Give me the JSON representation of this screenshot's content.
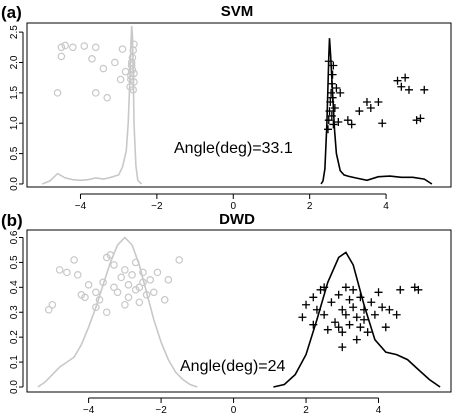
{
  "chart_data": [
    {
      "panel_label": "(a)",
      "type": "scatter",
      "title": "SVM",
      "xlabel": "",
      "ylabel": "",
      "xlim": [
        -5.4,
        5.7
      ],
      "ylim": [
        -0.05,
        2.65
      ],
      "xticks": [
        -4,
        -2,
        0,
        2,
        4
      ],
      "xtick_labels": [
        "−4",
        "−2",
        "0",
        "2",
        "4"
      ],
      "yticks": [
        0.0,
        0.5,
        1.0,
        1.5,
        2.0,
        2.5
      ],
      "ytick_labels": [
        "0.0",
        "0.5",
        "1.0",
        "1.5",
        "2.0",
        "2.5"
      ],
      "grid": false,
      "annotation": "Angle(deg)=33.1",
      "colors": {
        "class_circle": "#c8c8c8",
        "class_plus": "#000000"
      },
      "series": [
        {
          "marker": "circle",
          "points": [
            [
              -4.6,
              1.5
            ],
            [
              -4.5,
              2.1
            ],
            [
              -4.5,
              2.25
            ],
            [
              -4.4,
              2.28
            ],
            [
              -4.2,
              2.25
            ],
            [
              -3.9,
              2.27
            ],
            [
              -3.7,
              2.06
            ],
            [
              -3.6,
              2.25
            ],
            [
              -3.6,
              1.5
            ],
            [
              -3.4,
              1.9
            ],
            [
              -3.3,
              1.42
            ],
            [
              -3.1,
              2.0
            ],
            [
              -2.95,
              1.72
            ],
            [
              -2.9,
              2.22
            ],
            [
              -2.82,
              1.85
            ],
            [
              -2.7,
              1.6
            ],
            [
              -2.68,
              1.78
            ],
            [
              -2.66,
              1.95
            ],
            [
              -2.64,
              2.08
            ],
            [
              -2.62,
              2.2
            ],
            [
              -2.6,
              2.3
            ],
            [
              -2.6,
              1.68
            ],
            [
              -2.62,
              1.55
            ],
            [
              -2.64,
              1.88
            ],
            [
              -2.66,
              2.0
            ],
            [
              -2.68,
              1.72
            ],
            [
              -2.6,
              1.82
            ]
          ]
        },
        {
          "marker": "plus",
          "points": [
            [
              2.48,
              0.9
            ],
            [
              2.5,
              1.05
            ],
            [
              2.52,
              1.2
            ],
            [
              2.54,
              1.35
            ],
            [
              2.56,
              1.5
            ],
            [
              2.58,
              1.65
            ],
            [
              2.6,
              1.8
            ],
            [
              2.62,
              1.95
            ],
            [
              2.5,
              2.02
            ],
            [
              2.58,
              1.12
            ],
            [
              2.6,
              1.42
            ],
            [
              2.62,
              0.98
            ],
            [
              2.66,
              1.25
            ],
            [
              2.7,
              1.58
            ],
            [
              2.75,
              1.02
            ],
            [
              2.8,
              1.5
            ],
            [
              3.0,
              1.05
            ],
            [
              3.1,
              0.98
            ],
            [
              3.3,
              1.2
            ],
            [
              3.5,
              1.35
            ],
            [
              3.6,
              1.25
            ],
            [
              3.8,
              1.35
            ],
            [
              3.9,
              1.0
            ],
            [
              4.3,
              1.7
            ],
            [
              4.4,
              1.6
            ],
            [
              4.5,
              1.75
            ],
            [
              4.6,
              1.55
            ],
            [
              4.8,
              1.05
            ],
            [
              4.9,
              1.08
            ],
            [
              5.0,
              1.55
            ]
          ]
        }
      ],
      "density_curves": [
        {
          "color": "#c8c8c8",
          "x": [
            -5.0,
            -4.8,
            -4.6,
            -4.4,
            -4.2,
            -4.0,
            -3.8,
            -3.6,
            -3.4,
            -3.2,
            -3.0,
            -2.9,
            -2.8,
            -2.75,
            -2.7,
            -2.68,
            -2.66,
            -2.64,
            -2.62,
            -2.6,
            -2.55,
            -2.5,
            -2.4
          ],
          "y": [
            0.0,
            0.05,
            0.17,
            0.1,
            0.07,
            0.06,
            0.07,
            0.1,
            0.08,
            0.11,
            0.15,
            0.28,
            0.55,
            1.0,
            1.8,
            2.3,
            2.6,
            2.45,
            1.9,
            1.0,
            0.3,
            0.06,
            0.0
          ]
        },
        {
          "color": "#000000",
          "x": [
            2.3,
            2.35,
            2.4,
            2.45,
            2.5,
            2.52,
            2.55,
            2.6,
            2.65,
            2.7,
            2.8,
            2.9,
            3.0,
            3.2,
            3.5,
            3.8,
            4.1,
            4.4,
            4.7,
            5.0,
            5.2
          ],
          "y": [
            0.0,
            0.05,
            0.25,
            1.0,
            2.1,
            2.4,
            2.1,
            1.5,
            0.9,
            0.5,
            0.22,
            0.15,
            0.13,
            0.1,
            0.06,
            0.12,
            0.13,
            0.11,
            0.11,
            0.08,
            0.0
          ]
        }
      ]
    },
    {
      "panel_label": "(b)",
      "type": "scatter",
      "title": "DWD",
      "xlabel": "",
      "ylabel": "",
      "xlim": [
        -5.7,
        6.0
      ],
      "ylim": [
        -0.02,
        0.63
      ],
      "xticks": [
        -4,
        -2,
        0,
        2,
        4
      ],
      "xtick_labels": [
        "−4",
        "−2",
        "0",
        "2",
        "4"
      ],
      "yticks": [
        0.0,
        0.1,
        0.2,
        0.3,
        0.4,
        0.5,
        0.6
      ],
      "ytick_labels": [
        "0.0",
        "0.1",
        "0.2",
        "0.3",
        "0.4",
        "0.5",
        "0.6"
      ],
      "grid": false,
      "annotation": "Angle(deg)=24",
      "colors": {
        "class_circle": "#c8c8c8",
        "class_plus": "#000000"
      },
      "series": [
        {
          "marker": "circle",
          "points": [
            [
              -5.1,
              0.31
            ],
            [
              -5.0,
              0.33
            ],
            [
              -4.8,
              0.47
            ],
            [
              -4.6,
              0.46
            ],
            [
              -4.4,
              0.51
            ],
            [
              -4.3,
              0.45
            ],
            [
              -4.2,
              0.37
            ],
            [
              -4.0,
              0.41
            ],
            [
              -3.8,
              0.32
            ],
            [
              -3.7,
              0.35
            ],
            [
              -3.6,
              0.42
            ],
            [
              -3.5,
              0.52
            ],
            [
              -3.4,
              0.53
            ],
            [
              -3.3,
              0.49
            ],
            [
              -3.2,
              0.38
            ],
            [
              -3.1,
              0.44
            ],
            [
              -3.0,
              0.33
            ],
            [
              -3.0,
              0.47
            ],
            [
              -2.9,
              0.36
            ],
            [
              -2.9,
              0.41
            ],
            [
              -2.8,
              0.45
            ],
            [
              -2.7,
              0.39
            ],
            [
              -2.7,
              0.5
            ],
            [
              -2.6,
              0.34
            ],
            [
              -2.5,
              0.42
            ],
            [
              -2.5,
              0.46
            ],
            [
              -2.4,
              0.37
            ],
            [
              -2.3,
              0.43
            ],
            [
              -2.2,
              0.38
            ],
            [
              -2.1,
              0.46
            ],
            [
              -1.9,
              0.35
            ],
            [
              -1.8,
              0.43
            ],
            [
              -1.5,
              0.51
            ],
            [
              -3.8,
              0.38
            ],
            [
              -3.3,
              0.4
            ],
            [
              -2.6,
              0.4
            ],
            [
              -3.5,
              0.3
            ],
            [
              -4.1,
              0.36
            ]
          ]
        },
        {
          "marker": "plus",
          "points": [
            [
              1.9,
              0.28
            ],
            [
              2.0,
              0.33
            ],
            [
              2.2,
              0.36
            ],
            [
              2.3,
              0.31
            ],
            [
              2.4,
              0.39
            ],
            [
              2.5,
              0.29
            ],
            [
              2.5,
              0.4
            ],
            [
              2.6,
              0.23
            ],
            [
              2.7,
              0.34
            ],
            [
              2.8,
              0.26
            ],
            [
              2.9,
              0.37
            ],
            [
              3.0,
              0.22
            ],
            [
              3.0,
              0.31
            ],
            [
              3.1,
              0.29
            ],
            [
              3.1,
              0.4
            ],
            [
              3.2,
              0.35
            ],
            [
              3.2,
              0.25
            ],
            [
              3.3,
              0.32
            ],
            [
              3.3,
              0.39
            ],
            [
              3.4,
              0.28
            ],
            [
              3.4,
              0.19
            ],
            [
              3.5,
              0.36
            ],
            [
              3.5,
              0.24
            ],
            [
              3.6,
              0.31
            ],
            [
              3.7,
              0.22
            ],
            [
              3.8,
              0.34
            ],
            [
              3.9,
              0.29
            ],
            [
              4.0,
              0.38
            ],
            [
              4.1,
              0.32
            ],
            [
              4.2,
              0.24
            ],
            [
              4.3,
              0.31
            ],
            [
              4.5,
              0.29
            ],
            [
              4.6,
              0.39
            ],
            [
              5.0,
              0.4
            ],
            [
              5.1,
              0.39
            ],
            [
              2.9,
              0.24
            ],
            [
              3.6,
              0.27
            ],
            [
              2.2,
              0.25
            ],
            [
              3.0,
              0.16
            ]
          ]
        }
      ],
      "density_curves": [
        {
          "color": "#c8c8c8",
          "x": [
            -5.4,
            -5.2,
            -5.0,
            -4.8,
            -4.6,
            -4.4,
            -4.2,
            -4.0,
            -3.8,
            -3.6,
            -3.4,
            -3.2,
            -3.0,
            -2.8,
            -2.6,
            -2.4,
            -2.2,
            -2.0,
            -1.8,
            -1.6,
            -1.4,
            -1.2,
            -1.0
          ],
          "y": [
            0.0,
            0.02,
            0.05,
            0.08,
            0.1,
            0.12,
            0.17,
            0.24,
            0.32,
            0.41,
            0.5,
            0.57,
            0.6,
            0.57,
            0.49,
            0.38,
            0.27,
            0.18,
            0.11,
            0.06,
            0.03,
            0.01,
            0.0
          ]
        },
        {
          "color": "#000000",
          "x": [
            1.1,
            1.4,
            1.7,
            2.0,
            2.3,
            2.6,
            2.9,
            3.1,
            3.3,
            3.6,
            3.9,
            4.2,
            4.5,
            4.8,
            5.1,
            5.4,
            5.7
          ],
          "y": [
            0.0,
            0.01,
            0.05,
            0.13,
            0.27,
            0.42,
            0.52,
            0.54,
            0.49,
            0.33,
            0.19,
            0.14,
            0.13,
            0.11,
            0.07,
            0.03,
            0.0
          ]
        }
      ]
    }
  ]
}
